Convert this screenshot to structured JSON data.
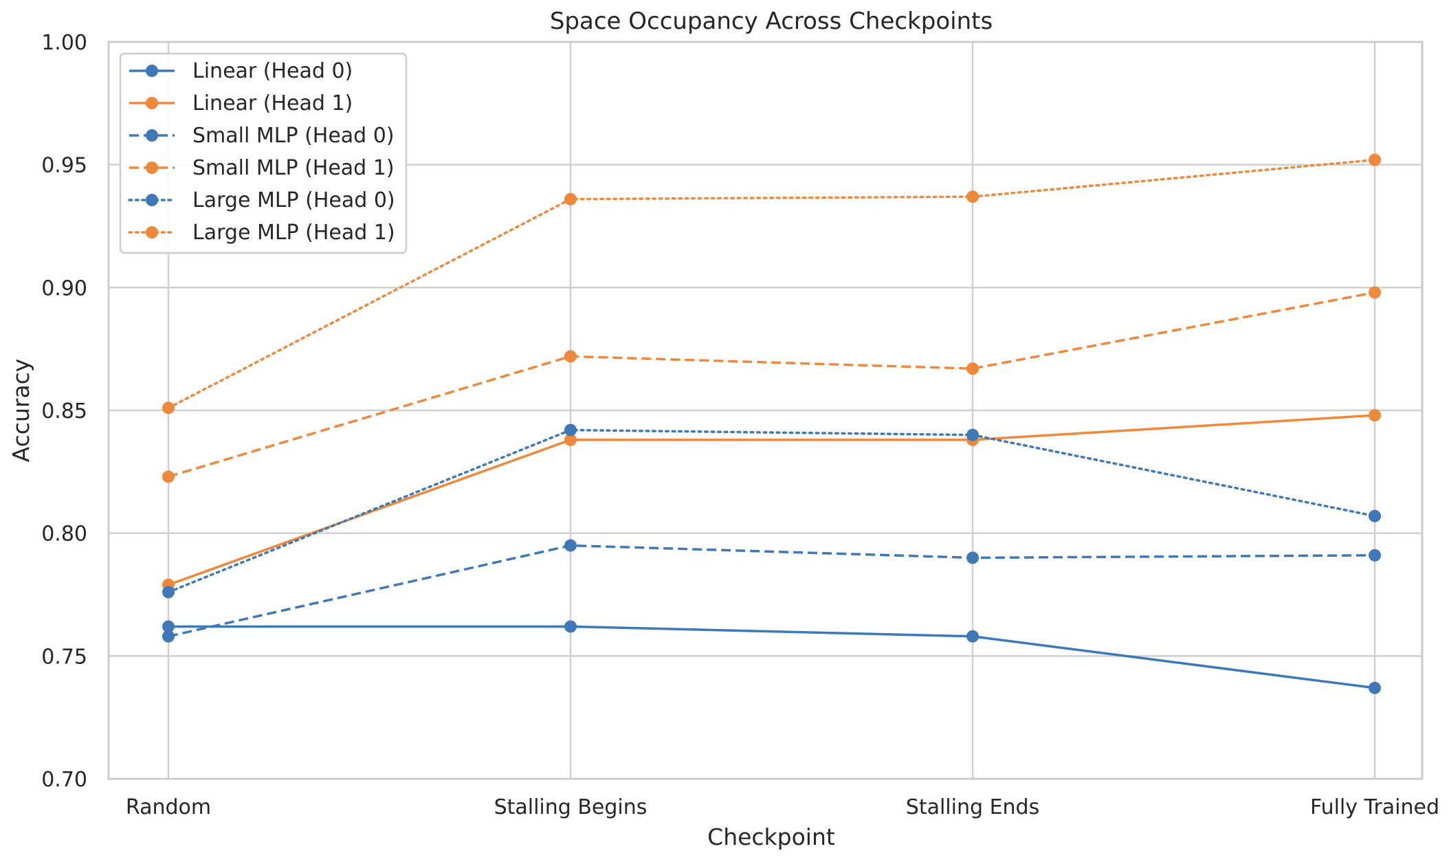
{
  "chart_data": {
    "type": "line",
    "title": "Space Occupancy Across Checkpoints",
    "xlabel": "Checkpoint",
    "ylabel": "Accuracy",
    "categories": [
      "Random",
      "Stalling Begins",
      "Stalling Ends",
      "Fully Trained"
    ],
    "ylim": [
      0.7,
      1.0
    ],
    "yticks": [
      0.7,
      0.75,
      0.8,
      0.85,
      0.9,
      0.95,
      1.0
    ],
    "ytick_labels": [
      "0.70",
      "0.75",
      "0.80",
      "0.85",
      "0.90",
      "0.95",
      "1.00"
    ],
    "grid": true,
    "legend_position": "top-left",
    "colors": {
      "head0": "#3d78b8",
      "head1": "#f0883a",
      "grid": "#d0d0d0"
    },
    "series": [
      {
        "name": "Linear (Head 0)",
        "color": "#3d78b8",
        "dash": "solid",
        "values": [
          0.762,
          0.762,
          0.758,
          0.737
        ]
      },
      {
        "name": "Linear (Head 1)",
        "color": "#f0883a",
        "dash": "solid",
        "values": [
          0.779,
          0.838,
          0.838,
          0.848
        ]
      },
      {
        "name": "Small MLP (Head 0)",
        "color": "#3d78b8",
        "dash": "dashed",
        "values": [
          0.758,
          0.795,
          0.79,
          0.791
        ]
      },
      {
        "name": "Small MLP (Head 1)",
        "color": "#f0883a",
        "dash": "dashed",
        "values": [
          0.823,
          0.872,
          0.867,
          0.898
        ]
      },
      {
        "name": "Large MLP (Head 0)",
        "color": "#3d78b8",
        "dash": "dotted",
        "values": [
          0.776,
          0.842,
          0.84,
          0.807
        ]
      },
      {
        "name": "Large MLP (Head 1)",
        "color": "#f0883a",
        "dash": "dotted",
        "values": [
          0.851,
          0.936,
          0.937,
          0.952
        ]
      }
    ]
  }
}
